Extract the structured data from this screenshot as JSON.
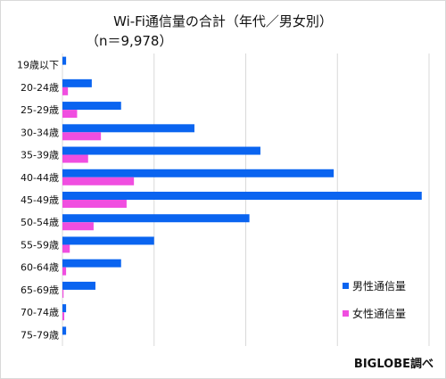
{
  "chart_data": {
    "type": "bar",
    "orientation": "horizontal",
    "title": "Wi-Fi通信量の合計（年代／男女別）",
    "subtitle": "（n＝9,978）",
    "categories": [
      "19歳以下",
      "20-24歳",
      "25-29歳",
      "30-34歳",
      "35-39歳",
      "40-44歳",
      "45-49歳",
      "50-54歳",
      "55-59歳",
      "60-64歳",
      "65-69歳",
      "70-74歳",
      "75-79歳"
    ],
    "series": [
      {
        "name": "男性通信量",
        "color": "#0a64f0",
        "values": [
          1,
          8,
          16,
          36,
          54,
          74,
          98,
          51,
          25,
          16,
          9,
          1,
          1
        ]
      },
      {
        "name": "女性通信量",
        "color": "#f04ee0",
        "values": [
          0,
          1.5,
          4,
          10.5,
          7,
          19.5,
          17.5,
          8.5,
          2,
          1,
          0.3,
          0.5,
          0
        ]
      }
    ],
    "xlim": [
      0,
      100
    ],
    "grid": true,
    "legend_position": "bottom-right",
    "source": "BIGLOBE調べ"
  }
}
